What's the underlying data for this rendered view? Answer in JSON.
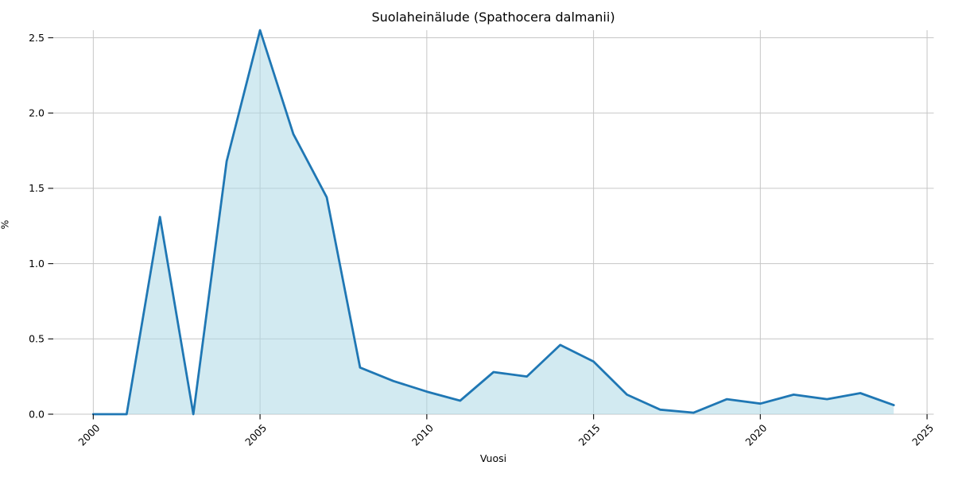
{
  "figure": {
    "title": "Suolaheinälude (Spathocera dalmanii)",
    "xlabel": "Vuosi",
    "ylabel": "%"
  },
  "chart_data": {
    "type": "area",
    "title": "Suolaheinälude (Spathocera dalmanii)",
    "xlabel": "Vuosi",
    "ylabel": "%",
    "x": [
      2000,
      2001,
      2002,
      2003,
      2004,
      2005,
      2006,
      2007,
      2008,
      2009,
      2010,
      2011,
      2012,
      2013,
      2014,
      2015,
      2016,
      2017,
      2018,
      2019,
      2020,
      2021,
      2022,
      2023,
      2024
    ],
    "values": [
      0.0,
      0.0,
      1.31,
      0.0,
      1.68,
      2.55,
      1.86,
      1.44,
      0.31,
      0.22,
      0.15,
      0.09,
      0.28,
      0.25,
      0.46,
      0.35,
      0.13,
      0.03,
      0.01,
      0.1,
      0.07,
      0.13,
      0.1,
      0.14,
      0.06
    ],
    "xlim": [
      1998.8,
      2025.2
    ],
    "ylim": [
      0,
      2.55
    ],
    "xticks": [
      2000,
      2005,
      2010,
      2015,
      2020,
      2025
    ],
    "xtick_labels": [
      "2000",
      "2005",
      "2010",
      "2015",
      "2020",
      "2025"
    ],
    "yticks": [
      0.0,
      0.5,
      1.0,
      1.5,
      2.0,
      2.5
    ],
    "ytick_labels": [
      "0.0",
      "0.5",
      "1.0",
      "1.5",
      "2.0",
      "2.5"
    ],
    "xtick_label_rotation_deg": 45,
    "grid": true,
    "legend": "none",
    "line_color": "#1f77b4",
    "line_width": 2.8,
    "fill_color": "#add8e6",
    "fill_opacity": 0.55,
    "grid_color": "#c6c6c6",
    "tick_color": "#1a1a1a",
    "text_color": "#000000",
    "background_color": "#ffffff"
  }
}
